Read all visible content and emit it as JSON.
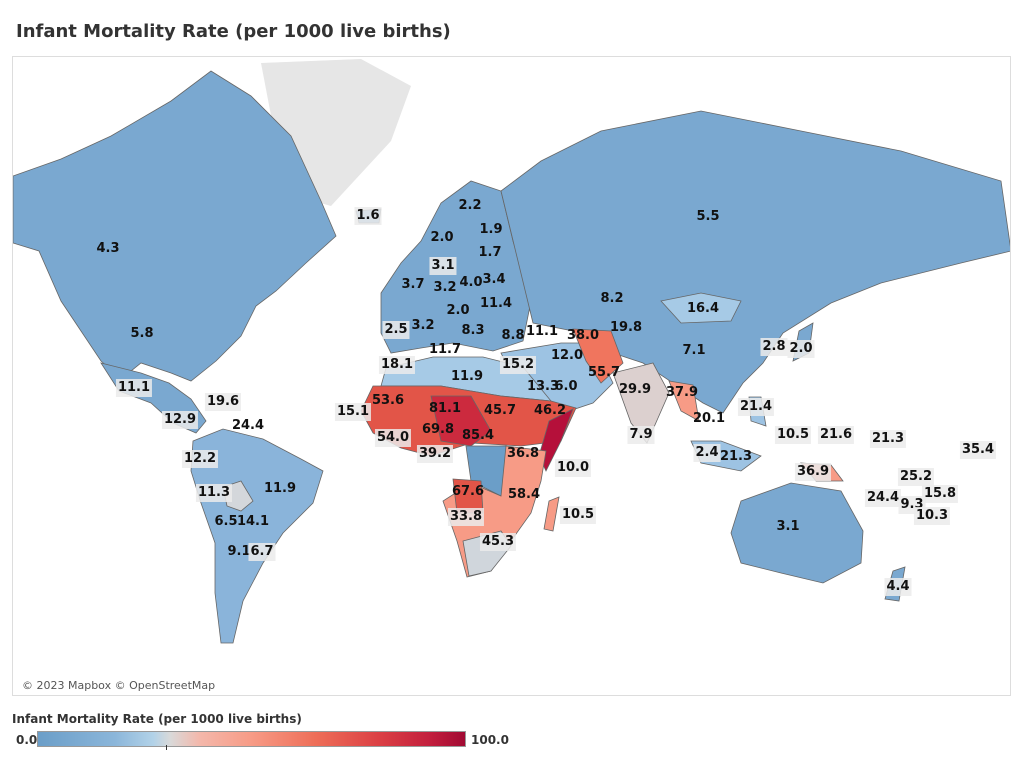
{
  "title": "Infant Mortality Rate (per 1000 live births)",
  "credit": "© 2023 Mapbox © OpenStreetMap",
  "legend": {
    "title": "Infant Mortality Rate (per 1000 live births)",
    "min": "0.0",
    "max": "100.0",
    "colors": [
      "#6b9ec8",
      "#b2d2e8",
      "#d9d9d9",
      "#f79b86",
      "#db3f44",
      "#a10a33"
    ]
  },
  "labels": [
    "1.6",
    "2.2",
    "1.9",
    "2.0",
    "1.7",
    "3.1",
    "3.7",
    "3.2",
    "4.0",
    "3.4",
    "8.2",
    "11.4",
    "2.0",
    "19.8",
    "16.4",
    "2.5",
    "3.2",
    "8.3",
    "8.8",
    "11.1",
    "38.0",
    "11.7",
    "12.0",
    "18.1",
    "15.2",
    "11.9",
    "13.3",
    "6.0",
    "55.7",
    "29.9",
    "7.1",
    "2.8",
    "2.0",
    "53.6",
    "81.1",
    "45.7",
    "46.2",
    "15.1",
    "69.8",
    "85.4",
    "54.0",
    "36.8",
    "39.2",
    "7.9",
    "10.0",
    "67.6",
    "58.4",
    "10.5",
    "33.8",
    "45.3",
    "37.9",
    "20.1",
    "21.4",
    "10.5",
    "21.6",
    "21.3",
    "35.4",
    "2.4",
    "21.3",
    "36.9",
    "25.2",
    "15.8",
    "24.4",
    "9.3",
    "10.3",
    "3.1",
    "4.4",
    "4.3",
    "5.5",
    "5.8",
    "11.1",
    "19.6",
    "12.9",
    "24.4",
    "12.2",
    "11.9",
    "11.3",
    "6.5",
    "14.1",
    "9.1",
    "6.7"
  ]
}
